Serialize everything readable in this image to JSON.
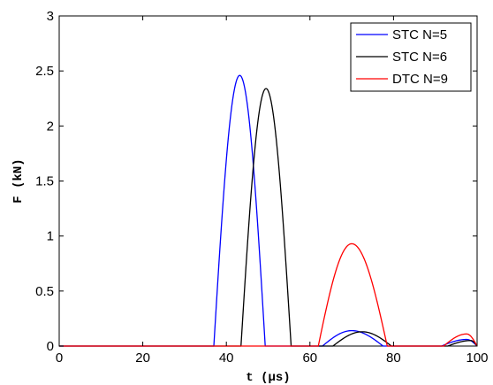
{
  "chart_data": {
    "type": "line",
    "xlabel": "t (μs)",
    "ylabel": "F (kN)",
    "xlim": [
      0,
      100
    ],
    "ylim": [
      0,
      3
    ],
    "xticks": [
      "0",
      "20",
      "40",
      "60",
      "80",
      "100"
    ],
    "yticks": [
      "0",
      "0.5",
      "1",
      "1.5",
      "2",
      "2.5",
      "3"
    ],
    "grid": false,
    "legend_position": "top-right",
    "series": [
      {
        "name": "STC N=5",
        "color": "#0000ff",
        "pulses": [
          {
            "start": 37,
            "end": 49.3,
            "peak_t": 43.2,
            "peak_F": 2.46
          },
          {
            "start": 63,
            "end": 77.5,
            "peak_t": 70,
            "peak_F": 0.14
          },
          {
            "start": 91.5,
            "end": 100,
            "peak_t": 97.5,
            "peak_F": 0.06
          }
        ]
      },
      {
        "name": "STC N=6",
        "color": "#000000",
        "pulses": [
          {
            "start": 43.5,
            "end": 55.5,
            "peak_t": 49.5,
            "peak_F": 2.34
          },
          {
            "start": 65.5,
            "end": 79.5,
            "peak_t": 72.5,
            "peak_F": 0.13
          },
          {
            "start": 93,
            "end": 100,
            "peak_t": 98.5,
            "peak_F": 0.05
          }
        ]
      },
      {
        "name": "DTC N=9",
        "color": "#ff0000",
        "pulses": [
          {
            "start": 62,
            "end": 78.5,
            "peak_t": 70,
            "peak_F": 0.93
          },
          {
            "start": 92,
            "end": 100,
            "peak_t": 97.5,
            "peak_F": 0.11
          }
        ]
      }
    ]
  }
}
